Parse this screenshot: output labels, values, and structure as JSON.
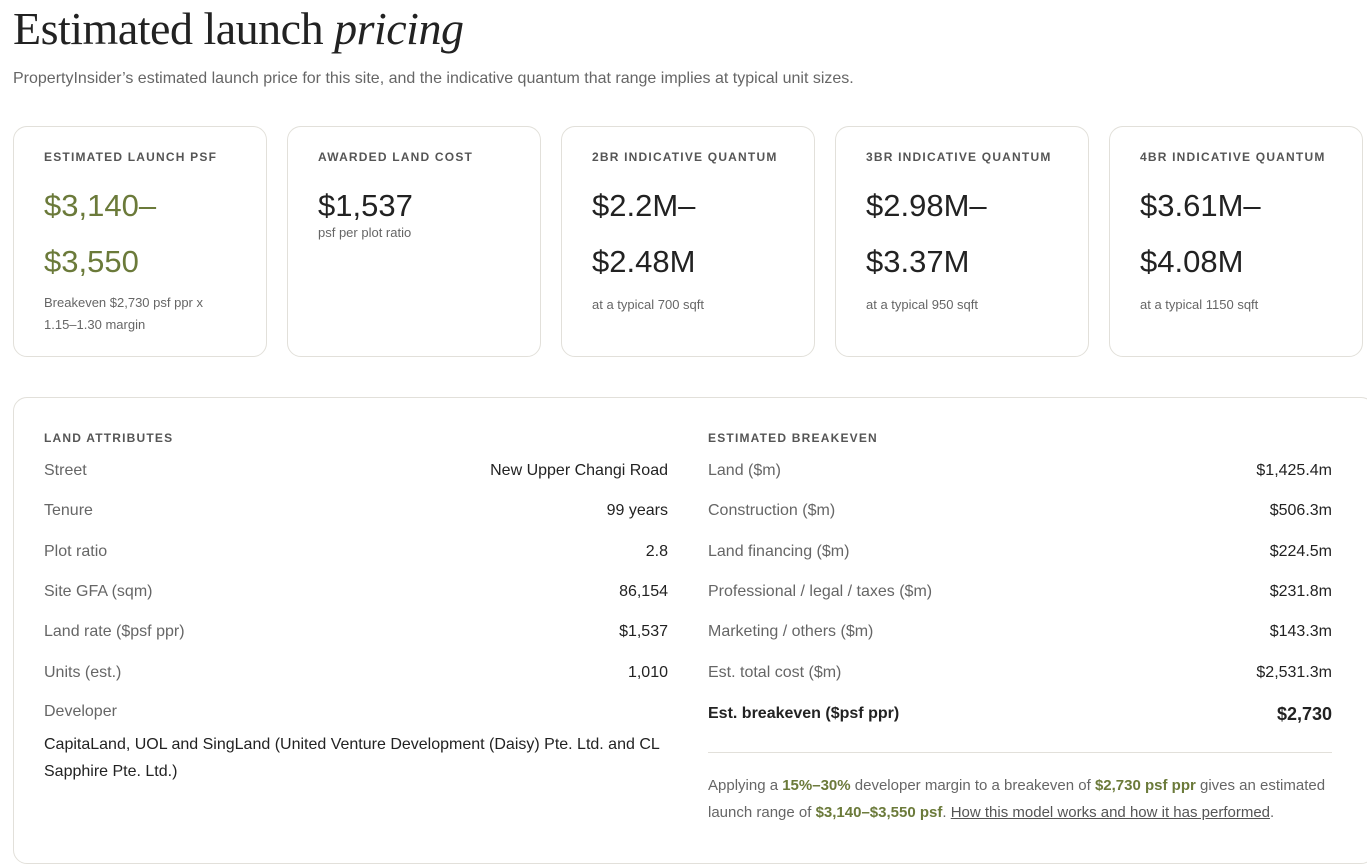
{
  "header": {
    "title_main": "Estimated launch",
    "title_em": "pricing",
    "subtitle": "PropertyInsider’s estimated launch price for this site, and the indicative quantum that range implies at typical unit sizes."
  },
  "cards": [
    {
      "label": "ESTIMATED LAUNCH PSF",
      "line1": "$3,140–",
      "line2": "$3,550",
      "note": "Breakeven $2,730 psf ppr x 1.15–1.30 margin"
    },
    {
      "label": "AWARDED LAND COST",
      "line1": "$1,537",
      "line2": "",
      "note": "psf per plot ratio"
    },
    {
      "label": "2BR INDICATIVE QUANTUM",
      "line1": "$2.2M–",
      "line2": "$2.48M",
      "note": "at a typical 700 sqft"
    },
    {
      "label": "3BR INDICATIVE QUANTUM",
      "line1": "$2.98M–",
      "line2": "$3.37M",
      "note": "at a typical 950 sqft"
    },
    {
      "label": "4BR INDICATIVE QUANTUM",
      "line1": "$3.61M–",
      "line2": "$4.08M",
      "note": "at a typical 1150 sqft"
    }
  ],
  "land": {
    "label": "LAND ATTRIBUTES",
    "rows": [
      {
        "k": "Street",
        "v": "New Upper Changi Road"
      },
      {
        "k": "Tenure",
        "v": "99 years"
      },
      {
        "k": "Plot ratio",
        "v": "2.8"
      },
      {
        "k": "Site GFA (sqm)",
        "v": "86,154"
      },
      {
        "k": "Land rate ($psf ppr)",
        "v": "$1,537"
      },
      {
        "k": "Units (est.)",
        "v": "1,010"
      }
    ],
    "developer_label": "Developer",
    "developer_value": "CapitaLand, UOL and SingLand (United Venture Development (Daisy) Pte. Ltd. and CL Sapphire Pte. Ltd.)"
  },
  "breakeven": {
    "label": "ESTIMATED BREAKEVEN",
    "rows": [
      {
        "k": "Land ($m)",
        "v": "$1,425.4m"
      },
      {
        "k": "Construction ($m)",
        "v": "$506.3m"
      },
      {
        "k": "Land financing ($m)",
        "v": "$224.5m"
      },
      {
        "k": "Professional / legal / taxes ($m)",
        "v": "$231.8m"
      },
      {
        "k": "Marketing / others ($m)",
        "v": "$143.3m"
      },
      {
        "k": "Est. total cost ($m)",
        "v": "$2,531.3m"
      }
    ],
    "total_k": "Est. breakeven ($psf ppr)",
    "total_v": "$2,730",
    "summary": {
      "t1": "Applying a ",
      "margin": "15%–30%",
      "t2": " developer margin to a breakeven of ",
      "be": "$2,730 psf ppr",
      "t3": " gives an estimated launch range of ",
      "range": "$3,140–$3,550 psf",
      "t4": ". ",
      "link": "How this model works and how it has performed",
      "t5": "."
    }
  },
  "colors": {
    "accent_green": "#6b7a3a",
    "border": "#e2e0da",
    "muted": "#666666"
  }
}
